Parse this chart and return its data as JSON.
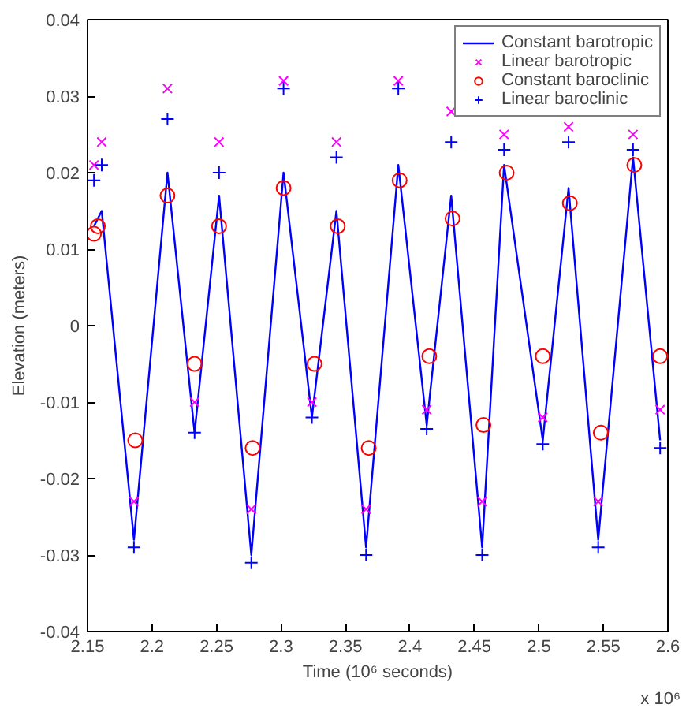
{
  "chart_data": {
    "type": "line",
    "xlabel": "Time (10⁶ seconds)",
    "ylabel": "Elevation (meters)",
    "annotations": [
      "x 10⁶"
    ],
    "xlim": [
      2.15,
      2.6
    ],
    "xticks": [
      2.15,
      2.2,
      2.25,
      2.3,
      2.35,
      2.4,
      2.45,
      2.5,
      2.55,
      2.6
    ],
    "ylim": [
      -0.04,
      0.04
    ],
    "yticks": [
      -0.04,
      -0.03,
      -0.02,
      -0.01,
      0,
      0.01,
      0.02,
      0.03,
      0.04
    ],
    "grid": false,
    "legend": "top right",
    "series": [
      {
        "name": "Constant barotropic",
        "marker": "none",
        "line_style": "solid",
        "color": "#0000ff",
        "x": [
          2.155,
          2.161,
          2.186,
          2.212,
          2.233,
          2.252,
          2.277,
          2.302,
          2.324,
          2.343,
          2.366,
          2.391,
          2.413,
          2.432,
          2.456,
          2.473,
          2.503,
          2.523,
          2.546,
          2.573,
          2.594
        ],
        "values": [
          0.013,
          0.015,
          -0.028,
          0.02,
          -0.014,
          0.017,
          -0.03,
          0.02,
          -0.012,
          0.015,
          -0.029,
          0.021,
          -0.013,
          0.017,
          -0.029,
          0.021,
          -0.015,
          0.018,
          -0.028,
          0.022,
          -0.015
        ]
      },
      {
        "name": "Linear barotropic",
        "type": "scatter",
        "marker": "cross",
        "color": "#ff00ff",
        "x": [
          2.155,
          2.161,
          2.186,
          2.212,
          2.233,
          2.252,
          2.277,
          2.302,
          2.324,
          2.343,
          2.366,
          2.391,
          2.413,
          2.432,
          2.456,
          2.473,
          2.503,
          2.523,
          2.546,
          2.573,
          2.594
        ],
        "values": [
          0.021,
          0.024,
          -0.023,
          0.031,
          -0.01,
          0.024,
          -0.024,
          0.032,
          -0.01,
          0.024,
          -0.024,
          0.032,
          -0.011,
          0.028,
          -0.023,
          0.025,
          -0.012,
          0.026,
          -0.023,
          0.025,
          -0.011
        ]
      },
      {
        "name": "Constant baroclinic",
        "type": "scatter",
        "marker": "circle",
        "color": "#ff0000",
        "x": [
          2.155,
          2.158,
          2.187,
          2.212,
          2.233,
          2.252,
          2.278,
          2.302,
          2.326,
          2.344,
          2.368,
          2.392,
          2.415,
          2.433,
          2.457,
          2.475,
          2.503,
          2.524,
          2.548,
          2.574,
          2.594
        ],
        "values": [
          0.012,
          0.013,
          -0.015,
          0.017,
          -0.005,
          0.013,
          -0.016,
          0.018,
          -0.005,
          0.013,
          -0.016,
          0.019,
          -0.004,
          0.014,
          -0.013,
          0.02,
          -0.004,
          0.016,
          -0.014,
          0.021,
          -0.004
        ]
      },
      {
        "name": "Linear baroclinic",
        "type": "scatter",
        "marker": "plus",
        "color": "#0000ff",
        "x": [
          2.155,
          2.161,
          2.186,
          2.212,
          2.233,
          2.252,
          2.277,
          2.302,
          2.324,
          2.343,
          2.366,
          2.391,
          2.413,
          2.432,
          2.456,
          2.473,
          2.503,
          2.523,
          2.546,
          2.573,
          2.594
        ],
        "values": [
          0.019,
          0.021,
          -0.029,
          0.027,
          -0.014,
          0.02,
          -0.031,
          0.031,
          -0.012,
          0.022,
          -0.03,
          0.031,
          -0.0135,
          0.024,
          -0.03,
          0.023,
          -0.0155,
          0.024,
          -0.029,
          0.023,
          -0.016
        ]
      }
    ]
  }
}
